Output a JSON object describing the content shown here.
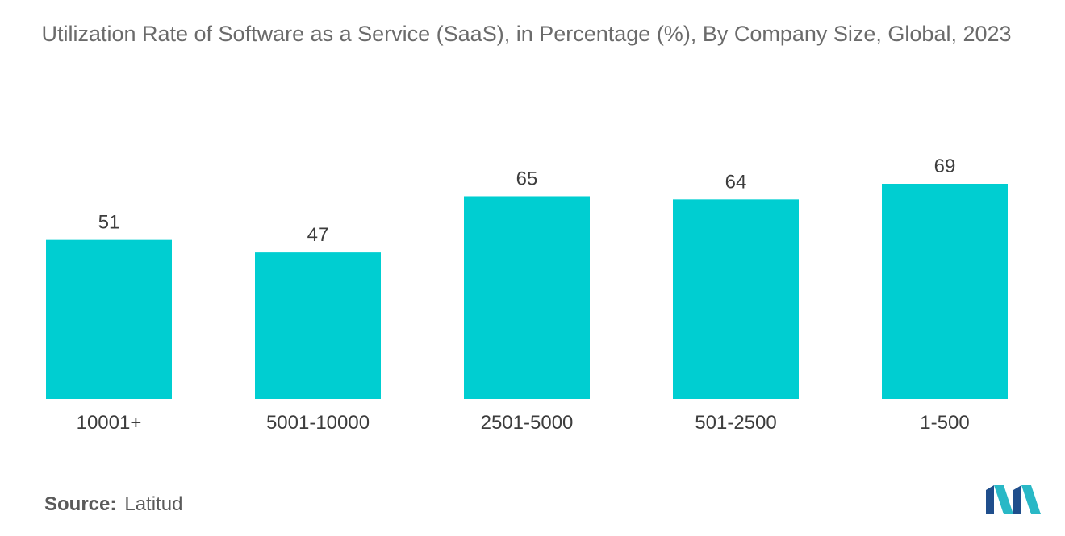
{
  "header": {
    "title": "Utilization Rate of Software as a Service (SaaS), in Percentage (%), By Company Size, Global, 2023"
  },
  "footer": {
    "source_label": "Source:",
    "source_value": "Latitud"
  },
  "colors": {
    "bar": "#00CED1",
    "logo_teal": "#29b8c6",
    "logo_dark": "#1f4e8c"
  },
  "chart_data": {
    "type": "bar",
    "title": "Utilization Rate of Software as a Service (SaaS), in Percentage (%), By Company Size, Global, 2023",
    "categories": [
      "10001+",
      "5001-10000",
      "2501-5000",
      "501-2500",
      "1-500"
    ],
    "values": [
      51,
      47,
      65,
      64,
      69
    ],
    "xlabel": "",
    "ylabel": "",
    "ylim": [
      0,
      69
    ],
    "grid": false,
    "legend": "none"
  }
}
